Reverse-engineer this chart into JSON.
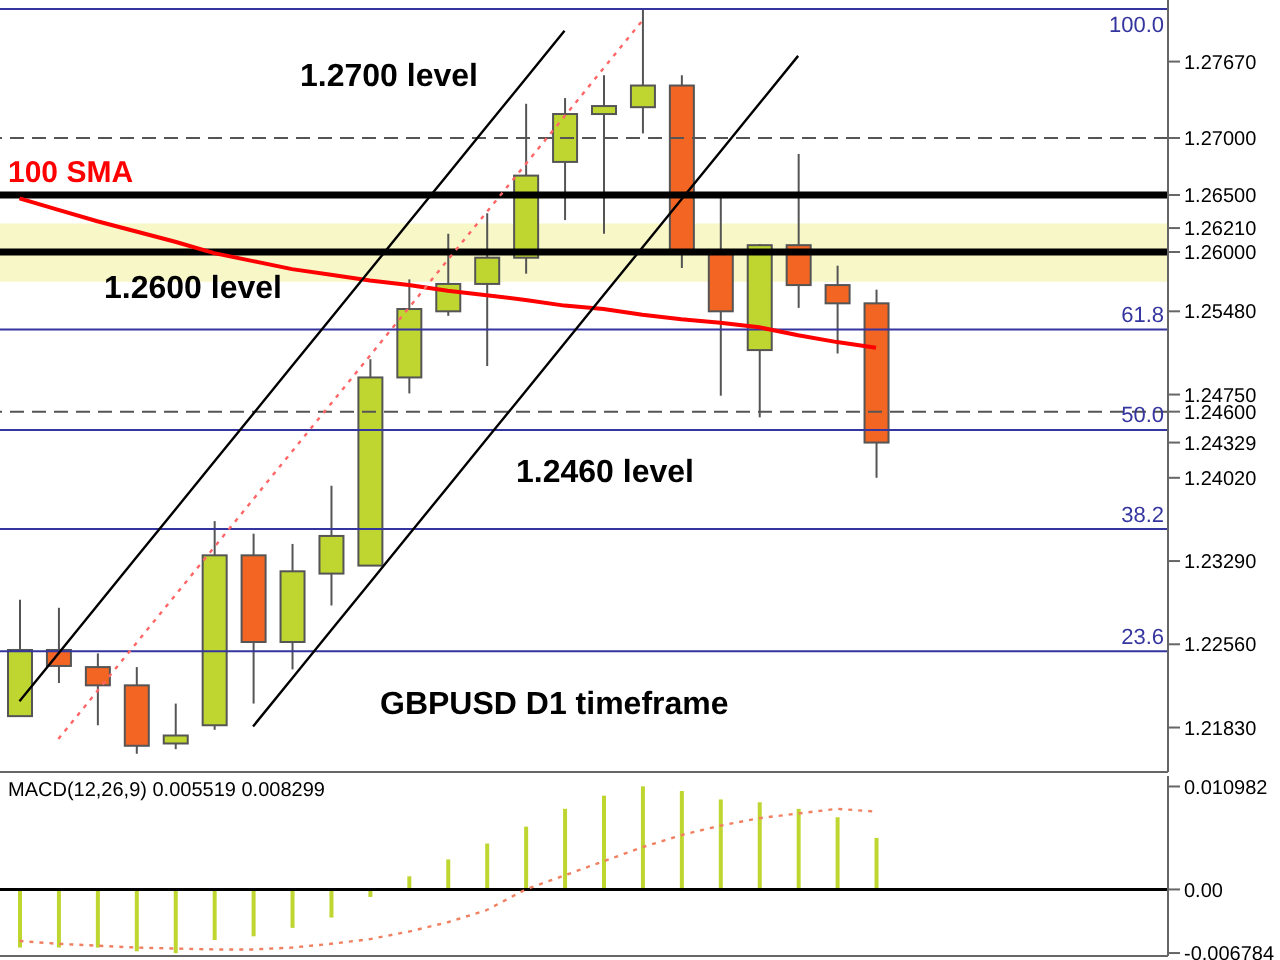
{
  "chart_data": [
    {
      "type": "candlestick",
      "categories": [
        null,
        null,
        null,
        null,
        null,
        null,
        null,
        null,
        null,
        null,
        null,
        null,
        null,
        null,
        null,
        null,
        null,
        null,
        null,
        null,
        null,
        null,
        null,
        null,
        null,
        null,
        null,
        null,
        null,
        null
      ],
      "ohlc": [
        [
          1.2193,
          1.2295,
          1.2193,
          1.2251
        ],
        [
          1.2251,
          1.2288,
          1.2222,
          1.2237
        ],
        [
          1.2236,
          1.2248,
          1.2185,
          1.222
        ],
        [
          1.222,
          1.2236,
          1.216,
          1.2167
        ],
        [
          1.2169,
          1.2204,
          1.2164,
          1.2176
        ],
        [
          1.2185,
          1.2364,
          1.2181,
          1.2334
        ],
        [
          1.2334,
          1.2353,
          1.2204,
          1.2258
        ],
        [
          1.2258,
          1.2344,
          1.2234,
          1.232
        ],
        [
          1.2318,
          1.2395,
          1.229,
          1.2351
        ],
        [
          1.2325,
          1.2506,
          1.2325,
          1.249
        ],
        [
          1.249,
          1.2576,
          1.2476,
          1.255
        ],
        [
          1.2548,
          1.2616,
          1.2544,
          1.2572
        ],
        [
          1.2572,
          1.2634,
          1.25,
          1.2595
        ],
        [
          1.2595,
          1.273,
          1.2581,
          1.2667
        ],
        [
          1.2679,
          1.2735,
          1.2628,
          1.2721
        ],
        [
          1.2721,
          1.2755,
          1.2616,
          1.2728
        ],
        [
          1.2727,
          1.2813,
          1.2704,
          1.2746
        ],
        [
          1.2746,
          1.2755,
          1.2586,
          1.26
        ],
        [
          1.2599,
          1.265,
          1.2474,
          1.2548
        ],
        [
          1.2514,
          1.2607,
          1.2455,
          1.2606
        ],
        [
          1.2606,
          1.2686,
          1.2551,
          1.2571
        ],
        [
          1.2571,
          1.2588,
          1.2511,
          1.2555
        ],
        [
          1.2555,
          1.2567,
          1.2402,
          1.24329
        ],
        null,
        null,
        null,
        null,
        null,
        null,
        null
      ],
      "colors": [
        "#bfd630",
        "#f26522",
        "#f26522",
        "#f26522",
        "#bfd630",
        "#bfd630",
        "#f26522",
        "#bfd630",
        "#bfd630",
        "#bfd630",
        "#bfd630",
        "#bfd630",
        "#bfd630",
        "#bfd630",
        "#bfd630",
        "#bfd630",
        "#bfd630",
        "#f26522",
        "#f26522",
        "#bfd630",
        "#f26522",
        "#f26522",
        "#f26522",
        null,
        null,
        null,
        null,
        null,
        null,
        null
      ],
      "series": [
        {
          "type": "line",
          "name": "100 SMA",
          "color": "#ff0000",
          "line_style": "solid",
          "values": [
            1.2647,
            1.2637,
            1.2627,
            1.2618,
            1.2609,
            1.2599,
            1.2592,
            1.2585,
            1.258,
            1.2575,
            1.2571,
            1.2566,
            1.2562,
            1.2558,
            1.2553,
            1.255,
            1.2545,
            1.2541,
            1.2538,
            1.2534,
            1.2527,
            1.2521,
            1.2516,
            null,
            null,
            null,
            null,
            null,
            null,
            null
          ]
        },
        {
          "type": "line",
          "color": "#000000",
          "line_style": "solid",
          "values": [
            1.2206,
            1.2248,
            1.229,
            1.2332,
            1.2374,
            1.2416,
            1.2458,
            1.25,
            1.2542,
            1.2584,
            1.2626,
            1.2668,
            1.271,
            1.2752,
            1.2794,
            null,
            null,
            null,
            null,
            null,
            null,
            null,
            null,
            null,
            null,
            null,
            null,
            null,
            null,
            null
          ]
        },
        {
          "type": "line",
          "color": "#000000",
          "line_style": "solid",
          "values": [
            null,
            null,
            null,
            null,
            null,
            null,
            1.2184,
            1.2226,
            1.2268,
            1.231,
            1.2352,
            1.2394,
            1.2436,
            1.2478,
            1.252,
            1.2562,
            1.2604,
            1.2646,
            1.2688,
            1.273,
            1.2772,
            null,
            null,
            null,
            null,
            null,
            null,
            null,
            null,
            null
          ]
        },
        {
          "type": "line",
          "color": "#ff6666",
          "line_style": "dotted",
          "values": [
            null,
            1.2173,
            1.2215,
            1.2257,
            1.2299,
            1.2341,
            1.2383,
            1.2425,
            1.2467,
            1.2509,
            1.2551,
            1.2593,
            1.2635,
            1.2677,
            1.2719,
            1.2761,
            1.2803,
            null,
            null,
            null,
            null,
            null,
            null,
            null,
            null,
            null,
            null,
            null,
            null,
            null
          ]
        }
      ],
      "ylim": [
        1.2144,
        1.2821
      ],
      "yticks": [
        {
          "value": 1.2767,
          "label": "1.27670"
        },
        {
          "value": 1.27,
          "label": "1.27000"
        },
        {
          "value": 1.265,
          "label": "1.26500"
        },
        {
          "value": 1.2621,
          "label": "1.26210"
        },
        {
          "value": 1.26,
          "label": "1.26000"
        },
        {
          "value": 1.2548,
          "label": "1.25480"
        },
        {
          "value": 1.2475,
          "label": "1.24750"
        },
        {
          "value": 1.246,
          "label": "1.24600"
        },
        {
          "value": 1.24329,
          "label": "1.24329"
        },
        {
          "value": 1.2402,
          "label": "1.24020"
        },
        {
          "value": 1.2329,
          "label": "1.23290"
        },
        {
          "value": 1.2256,
          "label": "1.22560"
        },
        {
          "value": 1.2183,
          "label": "1.21830"
        }
      ],
      "ref_lines": [
        {
          "axis": "y",
          "value": 1.27,
          "color": "#555555",
          "line_style": "dashed"
        },
        {
          "axis": "y",
          "value": 1.265,
          "color": "#000000",
          "line_style": "solid"
        },
        {
          "axis": "y",
          "value": 1.26,
          "color": "#000000",
          "line_style": "solid"
        },
        {
          "axis": "y",
          "value": 1.246,
          "color": "#555555",
          "line_style": "dashed"
        },
        {
          "axis": "y",
          "value": 1.2813,
          "color": "#3535a0",
          "line_style": "solid"
        },
        {
          "axis": "y",
          "value": 1.2532,
          "color": "#3535a0",
          "line_style": "solid"
        },
        {
          "axis": "y",
          "value": 1.2444,
          "color": "#3535a0",
          "line_style": "solid"
        },
        {
          "axis": "y",
          "value": 1.2357,
          "color": "#3535a0",
          "line_style": "solid"
        },
        {
          "axis": "y",
          "value": 1.225,
          "color": "#3535a0",
          "line_style": "solid"
        }
      ],
      "bands": [
        {
          "axis": "y",
          "from": 1.2574,
          "to": 1.2625,
          "color": "#f7f7c8"
        }
      ],
      "annotations": [
        "1.2700 level",
        "1.2600 level",
        "1.2460 level",
        "GBPUSD D1 timeframe",
        {
          "text": "100.0",
          "y": 1.2813
        },
        {
          "text": "61.8",
          "y": 1.2532
        },
        {
          "text": "50.0",
          "y": 1.2444
        },
        {
          "text": "38.2",
          "y": 1.2357
        },
        {
          "text": "23.6",
          "y": 1.225
        }
      ],
      "marker": "none"
    },
    {
      "type": "bar",
      "title": "MACD(12,26,9) 0.005519 0.008299",
      "categories": [
        null,
        null,
        null,
        null,
        null,
        null,
        null,
        null,
        null,
        null,
        null,
        null,
        null,
        null,
        null,
        null,
        null,
        null,
        null,
        null,
        null,
        null,
        null,
        null,
        null,
        null,
        null,
        null,
        null,
        null
      ],
      "series": [
        {
          "type": "bar",
          "color": "#bfd630",
          "values": [
            -0.0062,
            -0.0062,
            -0.0062,
            -0.0066,
            -0.0068,
            -0.0054,
            -0.005,
            -0.0041,
            -0.003,
            -0.0008,
            0.0014,
            0.0032,
            0.0049,
            0.0067,
            0.0086,
            0.01,
            0.011,
            0.0105,
            0.0096,
            0.0093,
            0.0086,
            0.0077,
            0.0055,
            null,
            null,
            null,
            null,
            null,
            null,
            null
          ]
        },
        {
          "type": "line",
          "color": "#f08060",
          "line_style": "dotted",
          "values": [
            -0.0055,
            -0.0058,
            -0.006,
            -0.0062,
            -0.0063,
            -0.0064,
            -0.0064,
            -0.0062,
            -0.0058,
            -0.0053,
            -0.0045,
            -0.0035,
            -0.0022,
            0,
            0.0015,
            0.003,
            0.0045,
            0.0058,
            0.0068,
            0.0076,
            0.0081,
            0.0086,
            0.0083,
            null,
            null,
            null,
            null,
            null,
            null,
            null
          ]
        }
      ],
      "ylim": [
        -0.0071,
        0.0121
      ],
      "yticks": [
        0.010982,
        {
          "value": 0,
          "label": "0.00"
        },
        -0.006784
      ],
      "ref_lines": [
        {
          "axis": "y",
          "value": 0,
          "color": "#000000",
          "line_style": "solid"
        }
      ],
      "marker": "none"
    }
  ]
}
